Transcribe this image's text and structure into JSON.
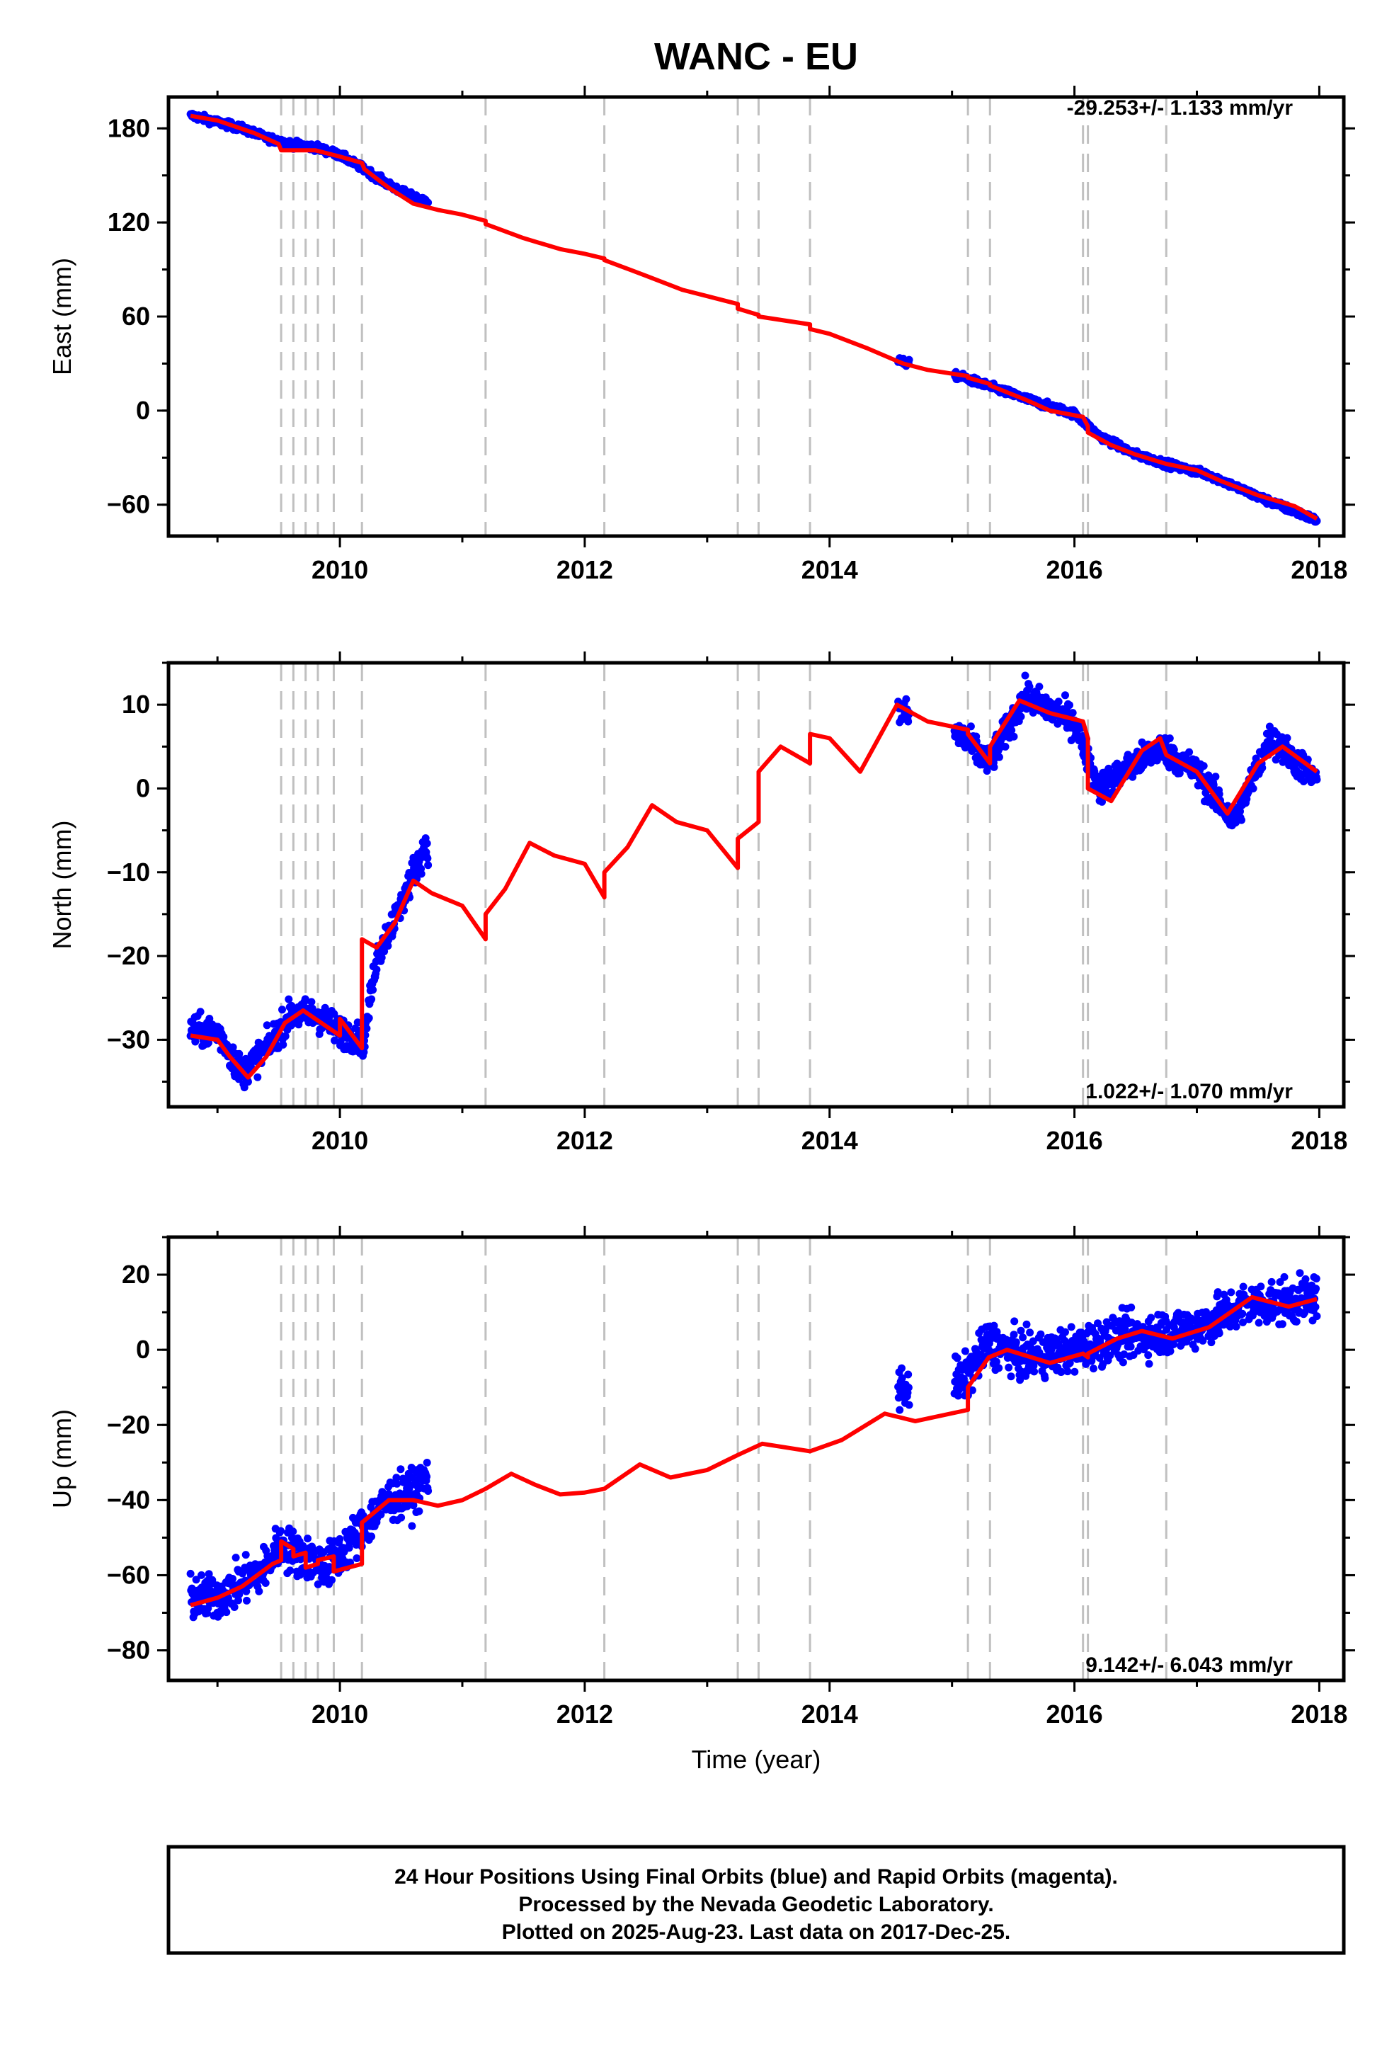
{
  "title": "WANC - EU",
  "colors": {
    "final_points": "#0000ff",
    "model_line": "#ff0000",
    "event_lines": "#c0c0c0",
    "frame": "#000000"
  },
  "x_ticks": [
    "2010",
    "2012",
    "2014",
    "2016",
    "2018"
  ],
  "xlabel": "Time (year)",
  "caption": {
    "line1": "24 Hour Positions Using Final Orbits (blue) and Rapid Orbits (magenta).",
    "line2": "Processed by the Nevada Geodetic Laboratory.",
    "line3": "Plotted on 2025-Aug-23. Last data on 2017-Dec-25."
  },
  "chart_data": [
    {
      "type": "scatter",
      "component": "east",
      "ylabel": "East (mm)",
      "xlim": [
        2008.6,
        2018.2
      ],
      "ylim": [
        -80,
        200
      ],
      "y_ticks": [
        180,
        120,
        60,
        0,
        -60
      ],
      "rate_label": "-29.253+/- 1.133 mm/yr",
      "rate_position": "top-right",
      "event_lines": [
        2009.52,
        2009.62,
        2009.72,
        2009.82,
        2009.95,
        2010.18,
        2011.19,
        2012.16,
        2013.25,
        2013.42,
        2013.84,
        2015.13,
        2015.31,
        2016.07,
        2016.11,
        2016.75
      ],
      "data_segments": [
        [
          2008.78,
          2010.72
        ],
        [
          2014.56,
          2014.65
        ],
        [
          2015.02,
          2017.98
        ]
      ],
      "points": [
        [
          2008.8,
          188
        ],
        [
          2008.9,
          186
        ],
        [
          2009.0,
          184
        ],
        [
          2009.2,
          180
        ],
        [
          2009.4,
          174
        ],
        [
          2009.6,
          170
        ],
        [
          2009.8,
          168
        ],
        [
          2010.0,
          163
        ],
        [
          2010.2,
          154
        ],
        [
          2010.4,
          144
        ],
        [
          2010.6,
          136
        ],
        [
          2010.7,
          134
        ],
        [
          2014.6,
          31
        ],
        [
          2015.1,
          21
        ],
        [
          2015.4,
          13
        ],
        [
          2015.7,
          5
        ],
        [
          2016.0,
          -2
        ],
        [
          2016.2,
          -16
        ],
        [
          2016.5,
          -28
        ],
        [
          2016.8,
          -35
        ],
        [
          2017.1,
          -41
        ],
        [
          2017.5,
          -55
        ],
        [
          2017.98,
          -70
        ]
      ],
      "model_line": [
        [
          2008.78,
          188
        ],
        [
          2009.0,
          185
        ],
        [
          2009.3,
          177
        ],
        [
          2009.5,
          170
        ],
        [
          2009.52,
          166
        ],
        [
          2009.8,
          166
        ],
        [
          2010.0,
          162
        ],
        [
          2010.18,
          158
        ],
        [
          2010.2,
          154
        ],
        [
          2010.4,
          142
        ],
        [
          2010.6,
          132
        ],
        [
          2010.8,
          128
        ],
        [
          2011.0,
          125
        ],
        [
          2011.19,
          121
        ],
        [
          2011.19,
          119
        ],
        [
          2011.5,
          110
        ],
        [
          2011.8,
          103
        ],
        [
          2012.0,
          100
        ],
        [
          2012.16,
          97
        ],
        [
          2012.16,
          96
        ],
        [
          2012.5,
          86
        ],
        [
          2012.8,
          77
        ],
        [
          2013.0,
          73
        ],
        [
          2013.25,
          68
        ],
        [
          2013.25,
          65
        ],
        [
          2013.42,
          61
        ],
        [
          2013.42,
          60
        ],
        [
          2013.84,
          55
        ],
        [
          2013.84,
          52
        ],
        [
          2014.0,
          49
        ],
        [
          2014.3,
          40
        ],
        [
          2014.6,
          30
        ],
        [
          2014.8,
          26
        ],
        [
          2015.13,
          22
        ],
        [
          2015.13,
          21
        ],
        [
          2015.31,
          17
        ],
        [
          2015.31,
          16
        ],
        [
          2015.6,
          7
        ],
        [
          2015.8,
          0
        ],
        [
          2016.07,
          -4
        ],
        [
          2016.11,
          -10
        ],
        [
          2016.11,
          -14
        ],
        [
          2016.3,
          -22
        ],
        [
          2016.5,
          -28
        ],
        [
          2016.75,
          -34
        ],
        [
          2017.0,
          -38
        ],
        [
          2017.2,
          -45
        ],
        [
          2017.5,
          -54
        ],
        [
          2017.8,
          -61
        ],
        [
          2017.98,
          -69
        ]
      ]
    },
    {
      "type": "scatter",
      "component": "north",
      "ylabel": "North (mm)",
      "xlim": [
        2008.6,
        2018.2
      ],
      "ylim": [
        -38,
        15
      ],
      "y_ticks": [
        10,
        0,
        -10,
        -20,
        -30
      ],
      "rate_label": "1.022+/- 1.070 mm/yr",
      "rate_position": "bottom-right",
      "event_lines": [
        2009.52,
        2009.62,
        2009.72,
        2009.82,
        2009.95,
        2010.18,
        2011.19,
        2012.16,
        2013.25,
        2013.42,
        2013.84,
        2015.13,
        2015.31,
        2016.07,
        2016.11,
        2016.75
      ],
      "data_segments": [
        [
          2008.78,
          2010.72
        ],
        [
          2014.56,
          2014.65
        ],
        [
          2015.02,
          2017.98
        ]
      ],
      "points": [
        [
          2008.8,
          -29
        ],
        [
          2009.0,
          -29
        ],
        [
          2009.2,
          -34
        ],
        [
          2009.4,
          -31
        ],
        [
          2009.6,
          -27
        ],
        [
          2009.8,
          -27
        ],
        [
          2010.0,
          -29
        ],
        [
          2010.2,
          -30
        ],
        [
          2010.3,
          -20
        ],
        [
          2010.5,
          -14
        ],
        [
          2010.6,
          -10
        ],
        [
          2010.7,
          -7
        ],
        [
          2014.6,
          9
        ],
        [
          2015.1,
          6
        ],
        [
          2015.3,
          3
        ],
        [
          2015.6,
          11
        ],
        [
          2016.0,
          8
        ],
        [
          2016.2,
          0
        ],
        [
          2016.5,
          3
        ],
        [
          2016.7,
          5
        ],
        [
          2017.0,
          2
        ],
        [
          2017.3,
          -4
        ],
        [
          2017.6,
          6
        ],
        [
          2017.98,
          1
        ]
      ],
      "model_line": [
        [
          2008.78,
          -29.5
        ],
        [
          2009.0,
          -30
        ],
        [
          2009.1,
          -32
        ],
        [
          2009.25,
          -34.5
        ],
        [
          2009.4,
          -32
        ],
        [
          2009.55,
          -28
        ],
        [
          2009.7,
          -26.5
        ],
        [
          2009.85,
          -28
        ],
        [
          2010.0,
          -29.5
        ],
        [
          2010.0,
          -27.5
        ],
        [
          2010.18,
          -31
        ],
        [
          2010.18,
          -18
        ],
        [
          2010.3,
          -19
        ],
        [
          2010.45,
          -16
        ],
        [
          2010.6,
          -11
        ],
        [
          2010.75,
          -12.5
        ],
        [
          2011.0,
          -14
        ],
        [
          2011.19,
          -18
        ],
        [
          2011.19,
          -15
        ],
        [
          2011.35,
          -12
        ],
        [
          2011.55,
          -6.5
        ],
        [
          2011.75,
          -8
        ],
        [
          2012.0,
          -9
        ],
        [
          2012.16,
          -13
        ],
        [
          2012.16,
          -10
        ],
        [
          2012.35,
          -7
        ],
        [
          2012.55,
          -2
        ],
        [
          2012.75,
          -4
        ],
        [
          2013.0,
          -5
        ],
        [
          2013.25,
          -9.5
        ],
        [
          2013.25,
          -6
        ],
        [
          2013.42,
          -4
        ],
        [
          2013.42,
          2
        ],
        [
          2013.6,
          5
        ],
        [
          2013.84,
          3
        ],
        [
          2013.84,
          6.5
        ],
        [
          2014.0,
          6
        ],
        [
          2014.25,
          2
        ],
        [
          2014.55,
          10
        ],
        [
          2014.8,
          8
        ],
        [
          2015.13,
          7
        ],
        [
          2015.13,
          6.5
        ],
        [
          2015.31,
          3
        ],
        [
          2015.31,
          5
        ],
        [
          2015.55,
          10.5
        ],
        [
          2015.8,
          9
        ],
        [
          2016.07,
          8
        ],
        [
          2016.11,
          6
        ],
        [
          2016.11,
          0
        ],
        [
          2016.3,
          -1.5
        ],
        [
          2016.55,
          4.5
        ],
        [
          2016.7,
          6
        ],
        [
          2016.75,
          4
        ],
        [
          2017.0,
          2
        ],
        [
          2017.25,
          -3
        ],
        [
          2017.5,
          3
        ],
        [
          2017.7,
          5
        ],
        [
          2017.98,
          2
        ]
      ]
    },
    {
      "type": "scatter",
      "component": "up",
      "ylabel": "Up (mm)",
      "xlim": [
        2008.6,
        2018.2
      ],
      "ylim": [
        -88,
        30
      ],
      "y_ticks": [
        20,
        0,
        -20,
        -40,
        -60,
        -80
      ],
      "rate_label": "9.142+/- 6.043 mm/yr",
      "rate_position": "bottom-right",
      "event_lines": [
        2009.52,
        2009.62,
        2009.72,
        2009.82,
        2009.95,
        2010.18,
        2011.19,
        2012.16,
        2013.25,
        2013.42,
        2013.84,
        2015.13,
        2015.31,
        2016.07,
        2016.11,
        2016.75
      ],
      "data_segments": [
        [
          2008.78,
          2010.72
        ],
        [
          2014.56,
          2014.65
        ],
        [
          2015.02,
          2017.98
        ]
      ],
      "points": [
        [
          2008.8,
          -66
        ],
        [
          2009.0,
          -66
        ],
        [
          2009.2,
          -62
        ],
        [
          2009.4,
          -58
        ],
        [
          2009.5,
          -52
        ],
        [
          2009.7,
          -55
        ],
        [
          2009.9,
          -58
        ],
        [
          2010.2,
          -47
        ],
        [
          2010.4,
          -40
        ],
        [
          2010.6,
          -38
        ],
        [
          2010.7,
          -34
        ],
        [
          2014.6,
          -10
        ],
        [
          2015.1,
          -8
        ],
        [
          2015.3,
          2
        ],
        [
          2015.6,
          -2
        ],
        [
          2016.0,
          0
        ],
        [
          2016.3,
          3
        ],
        [
          2016.6,
          4
        ],
        [
          2017.0,
          6
        ],
        [
          2017.4,
          12
        ],
        [
          2017.8,
          13
        ],
        [
          2017.98,
          14
        ]
      ],
      "model_line": [
        [
          2008.78,
          -68
        ],
        [
          2009.0,
          -66
        ],
        [
          2009.2,
          -63
        ],
        [
          2009.45,
          -57
        ],
        [
          2009.52,
          -56
        ],
        [
          2009.52,
          -51
        ],
        [
          2009.62,
          -53
        ],
        [
          2009.62,
          -55
        ],
        [
          2009.72,
          -54
        ],
        [
          2009.72,
          -58
        ],
        [
          2009.82,
          -57
        ],
        [
          2009.82,
          -56
        ],
        [
          2009.95,
          -55
        ],
        [
          2009.95,
          -59
        ],
        [
          2010.18,
          -57
        ],
        [
          2010.18,
          -46
        ],
        [
          2010.4,
          -40
        ],
        [
          2010.6,
          -40
        ],
        [
          2010.8,
          -41.5
        ],
        [
          2011.0,
          -40
        ],
        [
          2011.19,
          -37
        ],
        [
          2011.4,
          -33
        ],
        [
          2011.6,
          -36
        ],
        [
          2011.8,
          -38.5
        ],
        [
          2012.0,
          -38
        ],
        [
          2012.16,
          -37
        ],
        [
          2012.45,
          -30.5
        ],
        [
          2012.7,
          -34
        ],
        [
          2013.0,
          -32
        ],
        [
          2013.25,
          -28
        ],
        [
          2013.45,
          -25
        ],
        [
          2013.84,
          -27
        ],
        [
          2014.1,
          -24
        ],
        [
          2014.45,
          -17
        ],
        [
          2014.7,
          -19
        ],
        [
          2015.13,
          -16
        ],
        [
          2015.13,
          -10
        ],
        [
          2015.3,
          -2
        ],
        [
          2015.45,
          0
        ],
        [
          2015.8,
          -3.5
        ],
        [
          2016.07,
          -1
        ],
        [
          2016.11,
          -2
        ],
        [
          2016.11,
          -1
        ],
        [
          2016.35,
          3
        ],
        [
          2016.55,
          5
        ],
        [
          2016.8,
          3
        ],
        [
          2017.1,
          6
        ],
        [
          2017.45,
          14
        ],
        [
          2017.75,
          11.5
        ],
        [
          2017.98,
          13.5
        ]
      ]
    }
  ]
}
